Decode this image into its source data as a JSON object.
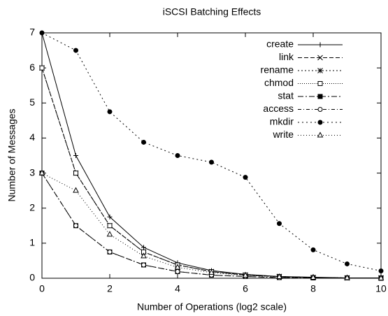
{
  "chart_data": {
    "type": "line",
    "title": "iSCSI Batching Effects",
    "x_label": "Number of Operations (log2 scale)",
    "y_label": "Number of Messages",
    "x": [
      0,
      1,
      2,
      3,
      4,
      5,
      6,
      7,
      8,
      9,
      10
    ],
    "xlim": [
      0,
      10
    ],
    "xticks": [
      0,
      2,
      4,
      6,
      8,
      10
    ],
    "ylim": [
      0,
      7
    ],
    "yticks": [
      0,
      1,
      2,
      3,
      4,
      5,
      6,
      7
    ],
    "legend": "upper right",
    "series": [
      {
        "name": "create",
        "color": "#000000",
        "dash": "none",
        "marker": "plus",
        "values": [
          7,
          3.5,
          1.75,
          0.88,
          0.44,
          0.22,
          0.11,
          0.05,
          0.03,
          0.01,
          0.01
        ]
      },
      {
        "name": "link",
        "color": "#000000",
        "dash": "6,3",
        "marker": "cross",
        "values": [
          6,
          3,
          1.5,
          0.75,
          0.38,
          0.19,
          0.09,
          0.05,
          0.02,
          0.01,
          0.01
        ]
      },
      {
        "name": "rename",
        "color": "#000000",
        "dash": "2,3",
        "marker": "star",
        "values": [
          6,
          3,
          1.5,
          0.75,
          0.38,
          0.19,
          0.09,
          0.05,
          0.02,
          0.01,
          0.01
        ]
      },
      {
        "name": "chmod",
        "color": "#000000",
        "dash": "1,2",
        "marker": "square-open",
        "values": [
          6,
          3,
          1.5,
          0.75,
          0.38,
          0.19,
          0.09,
          0.05,
          0.02,
          0.01,
          0.01
        ]
      },
      {
        "name": "stat",
        "color": "#000000",
        "dash": "8,3,2,3",
        "marker": "square-filled",
        "values": [
          3,
          1.5,
          0.75,
          0.38,
          0.19,
          0.09,
          0.05,
          0.02,
          0.01,
          0.01,
          0
        ]
      },
      {
        "name": "access",
        "color": "#000000",
        "dash": "5,3,1,3",
        "marker": "circle-open",
        "values": [
          3,
          1.5,
          0.75,
          0.38,
          0.19,
          0.09,
          0.05,
          0.02,
          0.01,
          0.01,
          0
        ]
      },
      {
        "name": "mkdir",
        "color": "#000000",
        "dash": "2,4",
        "marker": "circle-filled",
        "values": [
          7,
          6.5,
          4.75,
          3.88,
          3.5,
          3.31,
          2.88,
          1.56,
          0.81,
          0.41,
          0.21
        ]
      },
      {
        "name": "write",
        "color": "#000000",
        "dash": "1,3",
        "marker": "triangle-open",
        "values": [
          3,
          2.5,
          1.25,
          0.63,
          0.31,
          0.16,
          0.08,
          0.04,
          0.02,
          0.01,
          0
        ]
      }
    ]
  }
}
